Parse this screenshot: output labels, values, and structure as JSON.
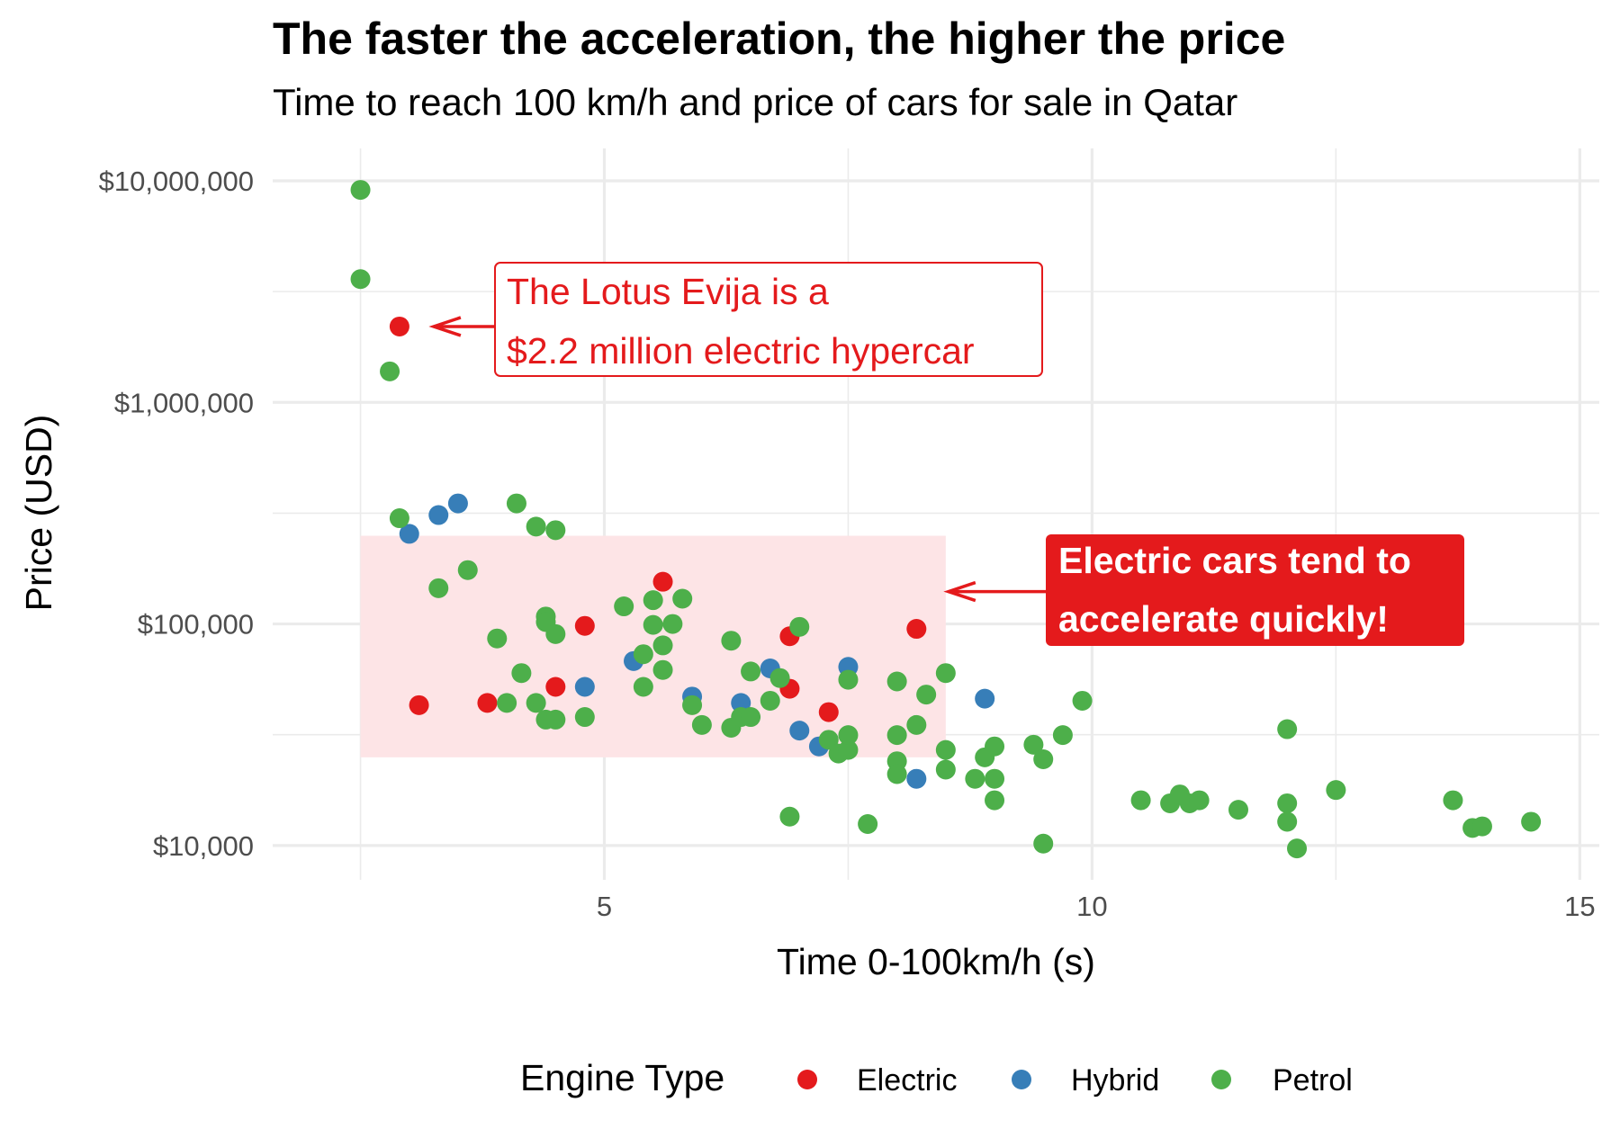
{
  "chart_data": {
    "type": "scatter",
    "title": "The faster the acceleration, the higher the price",
    "subtitle": "Time to reach 100 km/h and price of cars for sale in Qatar",
    "xlabel": "Time 0-100km/h (s)",
    "ylabel": "Price (USD)",
    "xlim": [
      1.6,
      15.2
    ],
    "ylim": [
      7000,
      14000000
    ],
    "y_scale": "log",
    "x_ticks": [
      5,
      10,
      15
    ],
    "x_tick_labels": [
      "5",
      "10",
      "15"
    ],
    "y_ticks": [
      10000,
      100000,
      1000000,
      10000000
    ],
    "y_tick_labels": [
      "$10,000",
      "$100,000",
      "$1,000,000",
      "$10,000,000"
    ],
    "grid": true,
    "legend": {
      "title": "Engine Type",
      "position": "bottom",
      "entries": [
        {
          "name": "Electric",
          "color": "#e41a1c"
        },
        {
          "name": "Hybrid",
          "color": "#377eb8"
        },
        {
          "name": "Petrol",
          "color": "#4daf4a"
        }
      ]
    },
    "highlight_region": {
      "x": [
        2.5,
        8.5
      ],
      "y": [
        25000,
        250000
      ],
      "color": "#fde4e6"
    },
    "annotations": [
      {
        "line1": "The Lotus Evija is a",
        "line2": "$2.2 million electric hypercar",
        "style": "outlined-red",
        "points_to": {
          "x": 2.9,
          "y": 2200000
        }
      },
      {
        "line1": "Electric cars tend to",
        "line2": "accelerate quickly!",
        "style": "filled-red",
        "points_to": {
          "x": 8.5,
          "y": 140000
        }
      }
    ],
    "series": [
      {
        "name": "Electric",
        "color": "#e41a1c",
        "points": [
          [
            2.9,
            2200000
          ],
          [
            3.1,
            43000
          ],
          [
            3.8,
            44000
          ],
          [
            4.5,
            52000
          ],
          [
            4.8,
            98000
          ],
          [
            5.6,
            155000
          ],
          [
            6.9,
            88000
          ],
          [
            6.9,
            51000
          ],
          [
            7.3,
            40000
          ],
          [
            8.2,
            95000
          ]
        ]
      },
      {
        "name": "Hybrid",
        "color": "#377eb8",
        "points": [
          [
            3.0,
            255000
          ],
          [
            3.3,
            310000
          ],
          [
            3.5,
            350000
          ],
          [
            4.8,
            52000
          ],
          [
            5.3,
            68000
          ],
          [
            5.9,
            47000
          ],
          [
            6.4,
            44000
          ],
          [
            6.7,
            63000
          ],
          [
            7.0,
            33000
          ],
          [
            7.2,
            28000
          ],
          [
            7.5,
            64000
          ],
          [
            8.2,
            20000
          ],
          [
            8.9,
            46000
          ]
        ]
      },
      {
        "name": "Petrol",
        "color": "#4daf4a",
        "points": [
          [
            2.5,
            9100000
          ],
          [
            2.5,
            3600000
          ],
          [
            2.8,
            1380000
          ],
          [
            2.9,
            300000
          ],
          [
            4.1,
            350000
          ],
          [
            4.3,
            275000
          ],
          [
            4.5,
            265000
          ],
          [
            3.3,
            145000
          ],
          [
            3.6,
            175000
          ],
          [
            3.9,
            86000
          ],
          [
            4.15,
            60000
          ],
          [
            4.0,
            44000
          ],
          [
            4.3,
            44000
          ],
          [
            4.4,
            37000
          ],
          [
            4.5,
            37000
          ],
          [
            4.8,
            38000
          ],
          [
            4.4,
            108000
          ],
          [
            4.4,
            102000
          ],
          [
            4.5,
            90000
          ],
          [
            5.2,
            120000
          ],
          [
            5.5,
            128000
          ],
          [
            5.8,
            130000
          ],
          [
            5.5,
            99000
          ],
          [
            5.7,
            100000
          ],
          [
            5.6,
            80000
          ],
          [
            5.4,
            73000
          ],
          [
            5.6,
            62000
          ],
          [
            5.4,
            52000
          ],
          [
            5.9,
            43000
          ],
          [
            6.0,
            35000
          ],
          [
            6.3,
            34000
          ],
          [
            6.3,
            84000
          ],
          [
            6.4,
            38000
          ],
          [
            6.5,
            38000
          ],
          [
            6.5,
            61000
          ],
          [
            6.7,
            45000
          ],
          [
            6.8,
            57000
          ],
          [
            7.0,
            97000
          ],
          [
            6.9,
            13500
          ],
          [
            7.3,
            30000
          ],
          [
            7.4,
            26000
          ],
          [
            7.5,
            27000
          ],
          [
            7.5,
            31500
          ],
          [
            7.5,
            56000
          ],
          [
            7.7,
            12500
          ],
          [
            8.0,
            55000
          ],
          [
            8.0,
            31500
          ],
          [
            8.0,
            24000
          ],
          [
            8.0,
            21000
          ],
          [
            8.2,
            35000
          ],
          [
            8.3,
            48000
          ],
          [
            8.5,
            60000
          ],
          [
            8.5,
            27000
          ],
          [
            8.5,
            22000
          ],
          [
            8.8,
            20000
          ],
          [
            8.9,
            25000
          ],
          [
            9.0,
            28000
          ],
          [
            9.0,
            20000
          ],
          [
            9.0,
            16000
          ],
          [
            9.4,
            28500
          ],
          [
            9.5,
            24500
          ],
          [
            9.5,
            10200
          ],
          [
            9.7,
            31500
          ],
          [
            9.9,
            45000
          ],
          [
            10.5,
            16000
          ],
          [
            10.8,
            15500
          ],
          [
            10.9,
            17000
          ],
          [
            11.0,
            15500
          ],
          [
            11.1,
            16000
          ],
          [
            11.5,
            14500
          ],
          [
            12.0,
            15500
          ],
          [
            12.0,
            12800
          ],
          [
            12.0,
            33500
          ],
          [
            12.1,
            9700
          ],
          [
            12.5,
            17800
          ],
          [
            13.7,
            16000
          ],
          [
            13.9,
            12000
          ],
          [
            14.0,
            12200
          ],
          [
            14.5,
            12800
          ]
        ]
      }
    ]
  }
}
